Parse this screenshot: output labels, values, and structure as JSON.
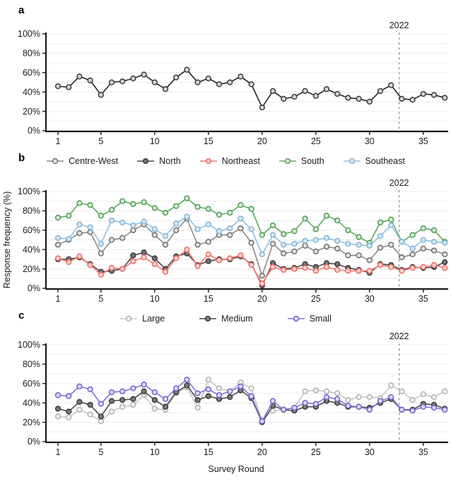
{
  "figure": {
    "xlabel": "Survey Round",
    "x_min": 1,
    "x_max": 37
  },
  "chart_data": [
    {
      "id": "a",
      "panel_label": "a",
      "type": "line",
      "x_ticks": [
        1,
        5,
        10,
        15,
        20,
        25,
        30,
        35
      ],
      "y_ticks": [
        "0%",
        "20%",
        "40%",
        "60%",
        "80%",
        "100%"
      ],
      "ylim": [
        0,
        100
      ],
      "grid": "horizontal-10pct",
      "legend_shown": false,
      "annotation": {
        "text": "2022",
        "x": 32.75
      },
      "series": [
        {
          "name": "",
          "line_color": "#242424",
          "marker_stroke": "#3c3c3c",
          "marker_fill": "#d4d4d4",
          "values": [
            46,
            45,
            56,
            52,
            37,
            50,
            51,
            54,
            58,
            50,
            43,
            55,
            63,
            50,
            54,
            48,
            50,
            56,
            48,
            24,
            41,
            33,
            35,
            41,
            36,
            43,
            38,
            34,
            33,
            30,
            41,
            47,
            33,
            32,
            38,
            37,
            34
          ]
        }
      ]
    },
    {
      "id": "b",
      "panel_label": "b",
      "type": "line",
      "ylabel": "Response frequency (%)",
      "x_ticks": [
        1,
        5,
        10,
        15,
        20,
        25,
        30,
        35
      ],
      "y_ticks": [
        "0%",
        "20%",
        "40%",
        "60%",
        "80%",
        "100%"
      ],
      "ylim": [
        0,
        100
      ],
      "grid": "horizontal-10pct",
      "legend_shown": true,
      "annotation": {
        "text": "2022",
        "x": 32.75
      },
      "series": [
        {
          "name": "Centre-West",
          "line_color": "#8a8a8a",
          "marker_stroke": "#6e6e6e",
          "marker_fill": "#e3e3e3",
          "values": [
            45,
            50,
            57,
            58,
            36,
            50,
            52,
            60,
            66,
            55,
            45,
            60,
            72,
            45,
            48,
            55,
            55,
            62,
            47,
            13,
            46,
            36,
            38,
            44,
            38,
            43,
            41,
            34,
            34,
            29,
            42,
            45,
            32,
            35,
            41,
            39,
            35
          ]
        },
        {
          "name": "North",
          "line_color": "#4a4a4a",
          "marker_stroke": "#3a3a3a",
          "marker_fill": "#757575",
          "values": [
            30,
            30,
            32,
            25,
            17,
            18,
            20,
            34,
            37,
            31,
            20,
            33,
            36,
            24,
            28,
            30,
            30,
            33,
            25,
            3,
            26,
            20,
            21,
            25,
            22,
            26,
            25,
            21,
            19,
            16,
            25,
            24,
            19,
            22,
            21,
            22,
            27
          ]
        },
        {
          "name": "Northeast",
          "line_color": "#f3756d",
          "marker_stroke": "#ef6a61",
          "marker_fill": "#fcd2cf",
          "values": [
            31,
            27,
            33,
            24,
            14,
            21,
            20,
            28,
            32,
            25,
            17,
            31,
            40,
            23,
            35,
            29,
            31,
            34,
            24,
            5,
            22,
            19,
            20,
            21,
            18,
            22,
            19,
            18,
            18,
            18,
            24,
            22,
            18,
            21,
            22,
            24,
            21
          ]
        },
        {
          "name": "South",
          "line_color": "#5cab5f",
          "marker_stroke": "#4c9e50",
          "marker_fill": "#d7ebd7",
          "values": [
            73,
            75,
            88,
            86,
            75,
            81,
            90,
            87,
            89,
            83,
            78,
            85,
            93,
            84,
            82,
            76,
            78,
            86,
            82,
            55,
            65,
            56,
            59,
            72,
            61,
            75,
            70,
            60,
            53,
            47,
            68,
            71,
            48,
            55,
            62,
            60,
            48
          ]
        },
        {
          "name": "Southeast",
          "line_color": "#92bfe0",
          "marker_stroke": "#7fb3d9",
          "marker_fill": "#d9e8f5",
          "values": [
            52,
            51,
            66,
            63,
            46,
            70,
            68,
            65,
            69,
            61,
            54,
            67,
            74,
            61,
            66,
            59,
            62,
            72,
            61,
            35,
            55,
            45,
            46,
            49,
            50,
            52,
            49,
            46,
            45,
            44,
            54,
            65,
            48,
            41,
            50,
            48,
            47
          ]
        }
      ]
    },
    {
      "id": "c",
      "panel_label": "c",
      "type": "line",
      "xlabel": "Survey Round",
      "x_ticks": [
        1,
        5,
        10,
        15,
        20,
        25,
        30,
        35
      ],
      "y_ticks": [
        "0%",
        "20%",
        "40%",
        "60%",
        "80%",
        "100%"
      ],
      "ylim": [
        0,
        100
      ],
      "grid": "horizontal-10pct",
      "legend_shown": true,
      "annotation": {
        "text": "2022",
        "x": 32.75
      },
      "series": [
        {
          "name": "Large",
          "line_color": "#c6c6c6",
          "marker_stroke": "#b2b2b2",
          "marker_fill": "#f2f2f2",
          "values": [
            26,
            25,
            33,
            28,
            21,
            31,
            36,
            38,
            48,
            34,
            33,
            50,
            56,
            35,
            64,
            55,
            52,
            61,
            55,
            22,
            32,
            33,
            35,
            52,
            53,
            52,
            50,
            43,
            46,
            46,
            45,
            58,
            52,
            43,
            49,
            46,
            52
          ]
        },
        {
          "name": "Medium",
          "line_color": "#4a4a4a",
          "marker_stroke": "#3a3a3a",
          "marker_fill": "#7a7a7a",
          "values": [
            34,
            31,
            41,
            38,
            26,
            42,
            43,
            44,
            52,
            43,
            36,
            51,
            58,
            43,
            47,
            44,
            46,
            53,
            45,
            20,
            37,
            33,
            32,
            36,
            36,
            42,
            40,
            36,
            36,
            35,
            40,
            44,
            33,
            33,
            39,
            38,
            34
          ]
        },
        {
          "name": "Small",
          "line_color": "#8174d8",
          "marker_stroke": "#6f61cf",
          "marker_fill": "#ded9f6",
          "values": [
            48,
            47,
            57,
            54,
            39,
            51,
            52,
            55,
            59,
            51,
            44,
            55,
            64,
            50,
            54,
            48,
            52,
            57,
            47,
            21,
            42,
            33,
            35,
            40,
            39,
            46,
            44,
            37,
            36,
            33,
            42,
            46,
            33,
            32,
            36,
            35,
            33
          ]
        }
      ]
    }
  ],
  "style": {
    "grid_color": "#ececec",
    "axis_color": "#1a1a1a",
    "dashed_line_color": "#9a9a9a",
    "tick_label_color": "#1a1a1a"
  }
}
